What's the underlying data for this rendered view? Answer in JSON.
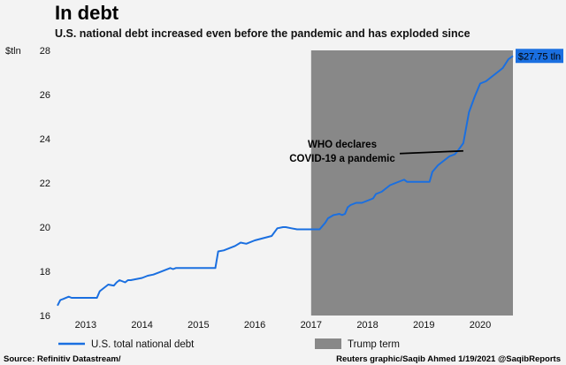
{
  "title": "In debt",
  "subtitle": "U.S. national debt increased even before the pandemic and has exploded since",
  "source": "Source: Refinitiv Datastream/",
  "credit": "Reuters graphic/Saqib Ahmed 1/19/2021 @SaqibReports",
  "colors": {
    "line": "#1a6fe0",
    "shade": "#888888",
    "end_label_bg": "#1a6fe0"
  },
  "chart_data": {
    "type": "line",
    "ylabel": "$tln",
    "ylim": [
      16,
      28
    ],
    "yticks": [
      16,
      18,
      20,
      22,
      24,
      26,
      28
    ],
    "xlim": [
      2012.5,
      2020.58
    ],
    "xticks": [
      2013,
      2014,
      2015,
      2016,
      2017,
      2018,
      2019,
      2020
    ],
    "grid": false,
    "legend_position": "bottom",
    "series": [
      {
        "name": "U.S. total national debt",
        "x": [
          2012.5,
          2012.55,
          2012.6,
          2012.7,
          2012.75,
          2013.0,
          2013.2,
          2013.25,
          2013.3,
          2013.4,
          2013.5,
          2013.55,
          2013.6,
          2013.7,
          2013.75,
          2013.8,
          2014.0,
          2014.1,
          2014.2,
          2014.3,
          2014.4,
          2014.5,
          2014.55,
          2014.6,
          2014.7,
          2014.8,
          2015.0,
          2015.1,
          2015.2,
          2015.3,
          2015.35,
          2015.45,
          2015.55,
          2015.65,
          2015.75,
          2015.85,
          2016.0,
          2016.15,
          2016.3,
          2016.4,
          2016.5,
          2016.55,
          2016.65,
          2016.75,
          2016.85,
          2017.0,
          2017.15,
          2017.25,
          2017.3,
          2017.4,
          2017.5,
          2017.55,
          2017.6,
          2017.65,
          2017.7,
          2017.8,
          2017.9,
          2018.0,
          2018.1,
          2018.15,
          2018.25,
          2018.4,
          2018.5,
          2018.6,
          2018.65,
          2018.7,
          2018.8,
          2019.0,
          2019.1,
          2019.15,
          2019.25,
          2019.35,
          2019.45,
          2019.55,
          2019.6,
          2019.7,
          2019.75,
          2019.8,
          2019.9,
          2020.0,
          2020.1,
          2020.2,
          2020.3,
          2020.4,
          2020.45,
          2020.5,
          2020.58
        ],
        "y": [
          16.45,
          16.7,
          16.75,
          16.85,
          16.8,
          16.8,
          16.8,
          17.1,
          17.2,
          17.4,
          17.35,
          17.5,
          17.6,
          17.5,
          17.6,
          17.6,
          17.7,
          17.8,
          17.85,
          17.95,
          18.05,
          18.15,
          18.1,
          18.15,
          18.15,
          18.15,
          18.15,
          18.15,
          18.15,
          18.15,
          18.9,
          18.95,
          19.05,
          19.15,
          19.3,
          19.25,
          19.4,
          19.5,
          19.6,
          19.95,
          20.0,
          20.0,
          19.95,
          19.9,
          19.9,
          19.9,
          19.9,
          20.2,
          20.4,
          20.55,
          20.6,
          20.55,
          20.6,
          20.9,
          21.0,
          21.1,
          21.1,
          21.2,
          21.3,
          21.5,
          21.6,
          21.9,
          22.0,
          22.1,
          22.15,
          22.05,
          22.05,
          22.05,
          22.05,
          22.5,
          22.8,
          23.0,
          23.2,
          23.3,
          23.45,
          23.8,
          24.5,
          25.2,
          25.9,
          26.5,
          26.6,
          26.8,
          27.0,
          27.2,
          27.4,
          27.6,
          27.75
        ]
      }
    ],
    "shaded_regions": [
      {
        "name": "Trump term",
        "x0": 2017.0,
        "x1": 2020.58
      }
    ],
    "annotations": [
      {
        "lines": [
          "WHO declares",
          "COVID-19 a pandemic"
        ],
        "x": 2019.7,
        "y": 23.45
      }
    ],
    "end_label": "$27.75 tln"
  }
}
